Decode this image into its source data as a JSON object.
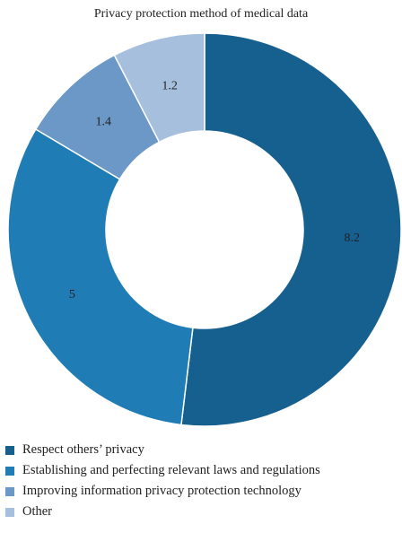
{
  "chart_data": {
    "type": "pie",
    "title": "Privacy protection method of medical data",
    "donut": true,
    "legend_position": "bottom-left",
    "slices": [
      {
        "label": "Respect others’ privacy",
        "value": 8.2,
        "color": "#16608f"
      },
      {
        "label": "Establishing and perfecting relevant laws and regulations",
        "value": 5,
        "color": "#1f7cb4"
      },
      {
        "label": "Improving information privacy protection technology",
        "value": 1.4,
        "color": "#6b98c6"
      },
      {
        "label": "Other",
        "value": 1.2,
        "color": "#a6bfdd"
      }
    ]
  }
}
